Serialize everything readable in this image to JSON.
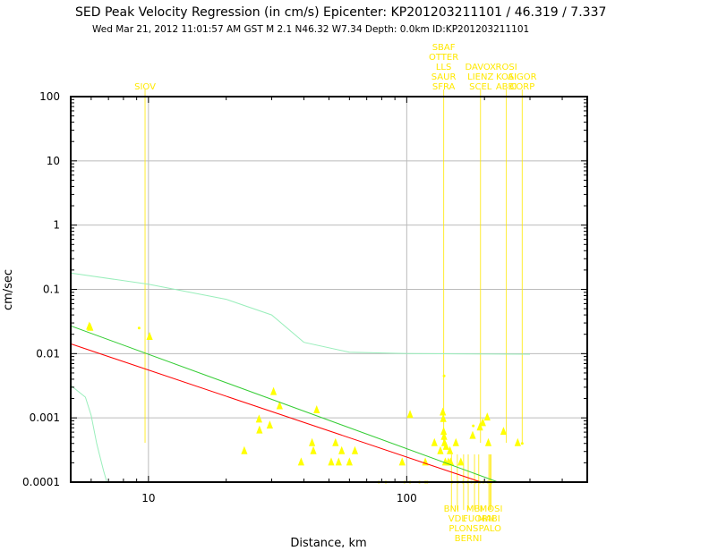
{
  "chart_data": {
    "type": "scatter",
    "title": "SED Peak Velocity Regression (in cm/s) Epicenter: KP201203211101 / 46.319 / 7.337",
    "subtitle": "Wed Mar 21, 2012 11:01:57 AM GST   M 2.1   N46.32 W7.34   Depth: 0.0km   ID:KP201203211101",
    "xlabel": "Distance, km",
    "ylabel": "cm/sec",
    "x_scale": "log",
    "y_scale": "log",
    "xlim": [
      5,
      500
    ],
    "ylim": [
      0.0001,
      100
    ],
    "grid": true,
    "x_tick_labels": [
      {
        "value": 10,
        "label": "10"
      },
      {
        "value": 100,
        "label": "100"
      }
    ],
    "y_tick_labels": [
      {
        "value": 100,
        "label": "100"
      },
      {
        "value": 10,
        "label": "10"
      },
      {
        "value": 1,
        "label": "1"
      },
      {
        "value": 0.1,
        "label": "0.1"
      },
      {
        "value": 0.01,
        "label": "0.01"
      },
      {
        "value": 0.001,
        "label": "0.001"
      },
      {
        "value": 0.0001,
        "label": "0.0001"
      }
    ],
    "colors": {
      "points": "#ffff00",
      "station_lines": "#ffe800",
      "green_line": "#33cc33",
      "red_line": "#ff0000",
      "light_green": "#99eebb",
      "grid": "#bbbbbb"
    },
    "series": [
      {
        "type": "points",
        "points": [
          [
            5.9,
            0.026
          ],
          [
            5.95,
            0.025
          ],
          [
            10.1,
            0.018
          ],
          [
            23.5,
            0.0003
          ],
          [
            26.8,
            0.00093
          ],
          [
            26.9,
            0.00063
          ],
          [
            29.5,
            0.00075
          ],
          [
            30.5,
            0.0025
          ],
          [
            32.2,
            0.0015
          ],
          [
            39,
            0.0002
          ],
          [
            43,
            0.0004
          ],
          [
            43.5,
            0.0003
          ],
          [
            44.8,
            0.0013
          ],
          [
            51,
            0.0002
          ],
          [
            53,
            0.0004
          ],
          [
            54.5,
            0.0002
          ],
          [
            56,
            0.0003
          ],
          [
            60,
            0.0002
          ],
          [
            63,
            0.0003
          ],
          [
            96,
            0.0002
          ],
          [
            103,
            0.0011
          ],
          [
            118,
            0.0002
          ],
          [
            128,
            0.0004
          ],
          [
            135,
            0.0003
          ],
          [
            138,
            0.0012
          ],
          [
            138.5,
            0.00095
          ],
          [
            139,
            0.0006
          ],
          [
            139.5,
            0.0005
          ],
          [
            140,
            0.0004
          ],
          [
            141,
            0.0002
          ],
          [
            142,
            0.00035
          ],
          [
            145,
            0.0002
          ],
          [
            147,
            0.0003
          ],
          [
            148,
            0.0002
          ],
          [
            155,
            0.0004
          ],
          [
            162,
            0.0002
          ],
          [
            180,
            0.00052
          ],
          [
            192,
            0.0007
          ],
          [
            197,
            0.00082
          ],
          [
            205,
            0.001
          ],
          [
            207,
            0.0004
          ],
          [
            237,
            0.0006
          ],
          [
            269,
            0.0004
          ]
        ]
      },
      {
        "type": "points",
        "points": [
          [
            9.2,
            0.025
          ],
          [
            139.5,
            0.0045
          ],
          [
            181,
            0.00075
          ],
          [
            280,
            0.0004
          ]
        ]
      },
      {
        "type": "points",
        "points": [
          [
            78,
            0.0001
          ],
          [
            83,
            0.0001
          ],
          [
            98,
            0.0001
          ],
          [
            103,
            0.0001
          ],
          [
            112,
            0.0001
          ],
          [
            118,
            0.0001
          ],
          [
            120,
            0.0001
          ],
          [
            150,
            0.0001
          ],
          [
            158,
            0.0001
          ],
          [
            165,
            0.0001
          ],
          [
            172,
            0.0001
          ],
          [
            178,
            0.0001
          ],
          [
            185,
            0.0001
          ],
          [
            192,
            0.0001
          ],
          [
            198,
            0.0001
          ],
          [
            206,
            0.0001
          ],
          [
            213,
            0.0001
          ]
        ]
      },
      {
        "type": "line",
        "points": [
          [
            5,
            0.027
          ],
          [
            226,
            0.0001
          ]
        ]
      },
      {
        "type": "line",
        "points": [
          [
            5,
            0.0142
          ],
          [
            194,
            0.0001
          ]
        ]
      },
      {
        "type": "line",
        "points": [
          [
            5,
            0.18
          ],
          [
            10,
            0.12
          ],
          [
            20,
            0.07
          ],
          [
            30,
            0.04
          ],
          [
            40,
            0.015
          ],
          [
            60,
            0.0105
          ],
          [
            100,
            0.01
          ],
          [
            300,
            0.0098
          ]
        ]
      },
      {
        "type": "line",
        "points": [
          [
            5,
            0.0032
          ],
          [
            5.7,
            0.0021
          ],
          [
            6.0,
            0.0011
          ],
          [
            6.3,
            0.0004
          ],
          [
            6.7,
            0.00015
          ],
          [
            6.9,
            0.0001
          ]
        ]
      }
    ],
    "station_labels_top": [
      {
        "name": "SIOV",
        "x": 9.7
      },
      {
        "name": "SBAF",
        "x": 139
      },
      {
        "name": "OTTER",
        "x": 139
      },
      {
        "name": "LLS",
        "x": 139
      },
      {
        "name": "SAUR",
        "x": 139
      },
      {
        "name": "SFRA",
        "x": 139
      },
      {
        "name": "DAVOX",
        "x": 193
      },
      {
        "name": "LIENZ",
        "x": 193
      },
      {
        "name": "SCEL",
        "x": 193
      },
      {
        "name": "AIGOR",
        "x": 280
      },
      {
        "name": "CORP",
        "x": 280
      },
      {
        "name": "ROSI",
        "x": 243
      },
      {
        "name": "KOSI",
        "x": 243
      },
      {
        "name": "ABBI",
        "x": 243
      }
    ],
    "station_labels_bottom": [
      {
        "name": "BNI",
        "x": 149
      },
      {
        "name": "VDL",
        "x": 157
      },
      {
        "name": "PLONS",
        "x": 166
      },
      {
        "name": "BERNI",
        "x": 173
      },
      {
        "name": "MBI",
        "x": 183
      },
      {
        "name": "FUORN",
        "x": 190
      },
      {
        "name": "MOSI",
        "x": 212
      },
      {
        "name": "MABI",
        "x": 208
      },
      {
        "name": "PALO",
        "x": 210
      }
    ]
  }
}
